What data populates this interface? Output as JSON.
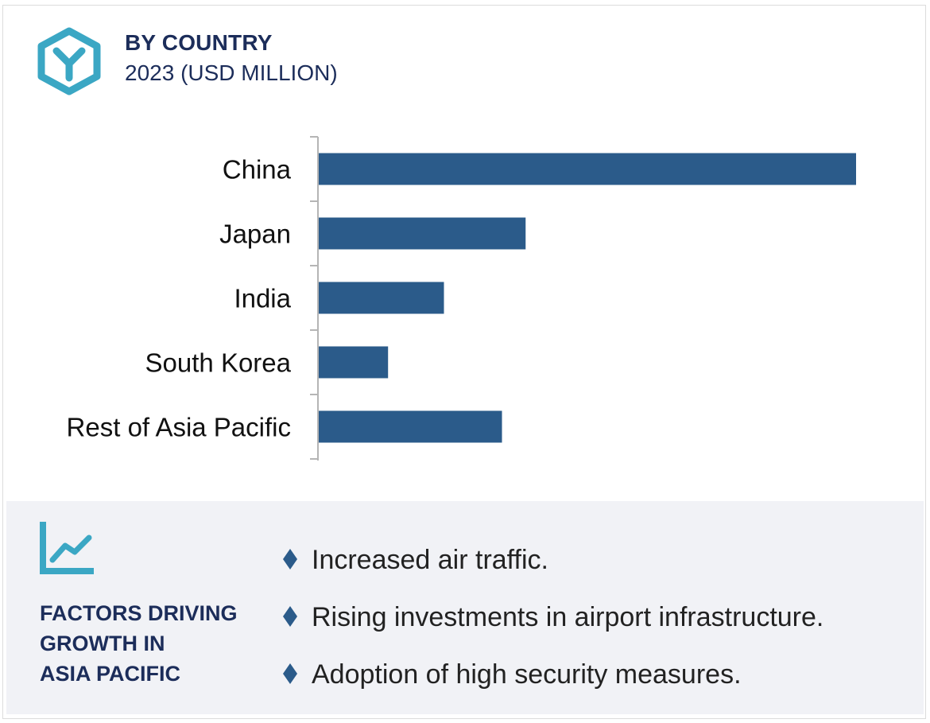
{
  "header": {
    "title": "BY COUNTRY",
    "subtitle": "2023 (USD MILLION)",
    "logo_icon": "hexagon-y-logo-icon",
    "accent_color": "#3ba7c4"
  },
  "chart_data": {
    "type": "bar",
    "orientation": "horizontal",
    "categories": [
      "China",
      "Japan",
      "India",
      "South Korea",
      "Rest of Asia Pacific"
    ],
    "values": [
      100,
      38.5,
      23.3,
      12.9,
      34.1
    ],
    "title": "BY COUNTRY",
    "subtitle": "2023 (USD MILLION)",
    "xlabel": "",
    "ylabel": "",
    "xlim": [
      0,
      100
    ],
    "bar_color": "#2b5b8a",
    "grid": false,
    "legend": "none"
  },
  "factors_panel": {
    "icon": "growth-line-chart-icon",
    "heading_lines": [
      "FACTORS DRIVING",
      "GROWTH IN",
      "ASIA PACIFIC"
    ],
    "bullet_icon": "diamond-bullet-icon",
    "items": [
      "Increased air traffic.",
      "Rising investments in airport infrastructure.",
      "Adoption of high security measures."
    ]
  }
}
